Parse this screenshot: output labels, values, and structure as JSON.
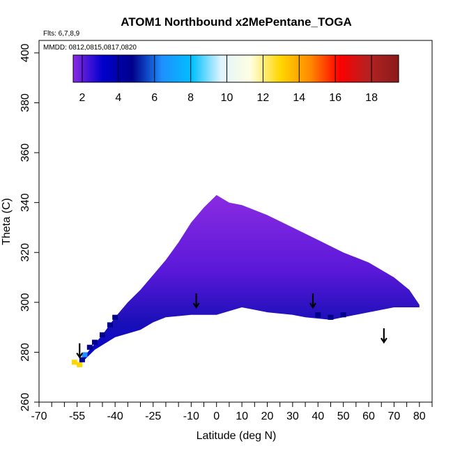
{
  "chart_data": {
    "type": "heatmap",
    "title": "ATOM1 Northbound x2MePentane_TOGA",
    "flights_label": "Flts: 6,7,8,9",
    "dates_label": "MMDD: 0812,0815,0817,0820",
    "xlabel": "Latitude (deg N)",
    "ylabel": "Theta (C)",
    "xlim": [
      -70,
      85
    ],
    "ylim": [
      260,
      405
    ],
    "x_ticks": [
      -70,
      -55,
      -40,
      -25,
      -10,
      0,
      10,
      20,
      30,
      40,
      50,
      60,
      70,
      80
    ],
    "y_ticks": [
      260,
      280,
      300,
      320,
      340,
      360,
      380,
      400
    ],
    "colorbar": {
      "range": [
        1.5,
        19.5
      ],
      "ticks": [
        2,
        4,
        6,
        8,
        10,
        12,
        14,
        16,
        18
      ],
      "colors": [
        "#8A2BE2",
        "#0000CD",
        "#00008B",
        "#1E90FF",
        "#00BFFF",
        "#E0F4FF",
        "#FFFFE0",
        "#FFD700",
        "#FF8C00",
        "#FF0000",
        "#B22222",
        "#8B1A1A"
      ]
    },
    "region_envelope": {
      "top": [
        [
          -54,
          276
        ],
        [
          -50,
          281
        ],
        [
          -45,
          287
        ],
        [
          -40,
          294
        ],
        [
          -35,
          300
        ],
        [
          -30,
          305
        ],
        [
          -25,
          311
        ],
        [
          -20,
          317
        ],
        [
          -15,
          324
        ],
        [
          -10,
          332
        ],
        [
          -5,
          338
        ],
        [
          0,
          343
        ],
        [
          5,
          340
        ],
        [
          10,
          339
        ],
        [
          20,
          335
        ],
        [
          30,
          330
        ],
        [
          40,
          325
        ],
        [
          50,
          320
        ],
        [
          60,
          316
        ],
        [
          70,
          310
        ],
        [
          76,
          305
        ],
        [
          80,
          299
        ]
      ],
      "bottom": [
        [
          80,
          298
        ],
        [
          70,
          298
        ],
        [
          60,
          296
        ],
        [
          50,
          294
        ],
        [
          45,
          293
        ],
        [
          35,
          294
        ],
        [
          30,
          295
        ],
        [
          20,
          296
        ],
        [
          10,
          298
        ],
        [
          0,
          295
        ],
        [
          -10,
          295
        ],
        [
          -20,
          294
        ],
        [
          -25,
          292
        ],
        [
          -30,
          289
        ],
        [
          -40,
          286
        ],
        [
          -48,
          281
        ],
        [
          -54,
          275
        ]
      ]
    },
    "cells": [
      {
        "lat": -56,
        "theta": 276,
        "value": 14
      },
      {
        "lat": -54,
        "theta": 275,
        "value": 13
      },
      {
        "lat": -53,
        "theta": 277,
        "value": 6
      },
      {
        "lat": -52,
        "theta": 279,
        "value": 7
      },
      {
        "lat": -50,
        "theta": 282,
        "value": 6
      },
      {
        "lat": -48,
        "theta": 284,
        "value": 5
      },
      {
        "lat": -45,
        "theta": 287,
        "value": 6
      },
      {
        "lat": -42,
        "theta": 291,
        "value": 5
      },
      {
        "lat": -40,
        "theta": 294,
        "value": 5
      },
      {
        "lat": 45,
        "theta": 294,
        "value": 6
      },
      {
        "lat": 50,
        "theta": 295,
        "value": 6
      },
      {
        "lat": 40,
        "theta": 295,
        "value": 5
      }
    ],
    "arrows": [
      {
        "lat": -54,
        "theta": 278
      },
      {
        "lat": -8,
        "theta": 298
      },
      {
        "lat": 38,
        "theta": 298
      },
      {
        "lat": 66,
        "theta": 284
      }
    ]
  }
}
